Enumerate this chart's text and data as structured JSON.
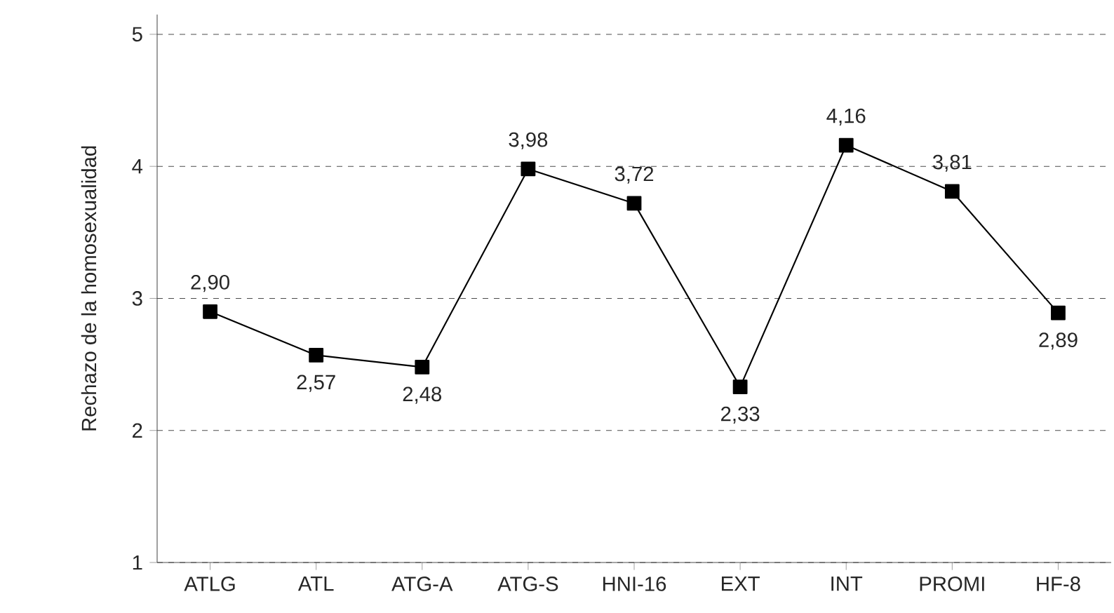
{
  "chart_data": {
    "type": "line",
    "ylabel": "Rechazo de la homosexualidad",
    "categories": [
      "ATLG",
      "ATL",
      "ATG-A",
      "ATG-S",
      "HNI-16",
      "EXT",
      "INT",
      "PROMI",
      "HF-8"
    ],
    "values": [
      2.9,
      2.57,
      2.48,
      3.98,
      3.72,
      2.33,
      4.16,
      3.81,
      2.89
    ],
    "value_labels": [
      "2,90",
      "2,57",
      "2,48",
      "3,98",
      "3,72",
      "2,33",
      "4,16",
      "3,81",
      "2,89"
    ],
    "color": "#000000",
    "marker": "square",
    "line_style": "solid",
    "ylim": [
      1,
      5.15
    ],
    "yticks": [
      1,
      2,
      3,
      4,
      5
    ],
    "grid": "y"
  }
}
